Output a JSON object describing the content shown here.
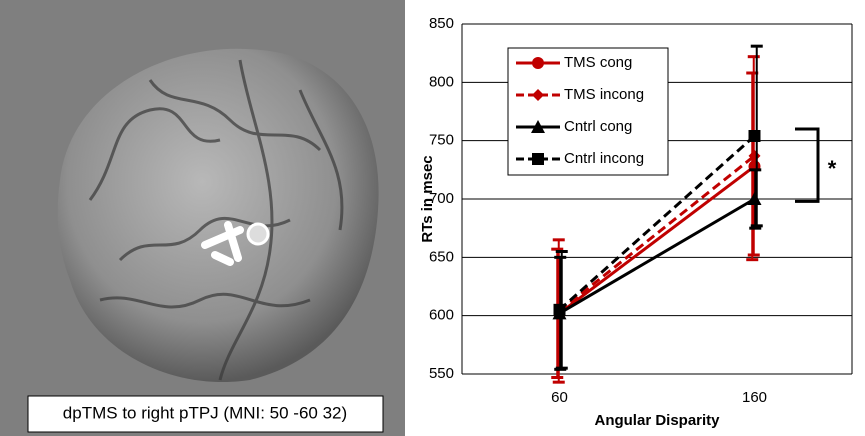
{
  "image_caption": "dpTMS to right pTPJ (MNI: 50 -60 32)",
  "chart_data": {
    "type": "line",
    "x_label": "Angular Disparity",
    "y_label": "RTs in msec",
    "categories": [
      "60",
      "160"
    ],
    "ylim": [
      550,
      850
    ],
    "yticks": [
      550,
      600,
      650,
      700,
      750,
      800,
      850
    ],
    "grid": true,
    "legend": "upper-left",
    "annotation": "*",
    "series": [
      {
        "name": "TMS cong",
        "color": "#c00000",
        "dash": "solid",
        "marker": "circle",
        "values": [
          602,
          728
        ],
        "errors": [
          55,
          80
        ]
      },
      {
        "name": "TMS incong",
        "color": "#c00000",
        "dash": "dashed",
        "marker": "diamond",
        "values": [
          604,
          737
        ],
        "errors": [
          61,
          85
        ]
      },
      {
        "name": "Cntrl cong",
        "color": "#000000",
        "dash": "solid",
        "marker": "triangle",
        "values": [
          602,
          700
        ],
        "errors": [
          48,
          25
        ]
      },
      {
        "name": "Cntrl incong",
        "color": "#000000",
        "dash": "dashed",
        "marker": "square",
        "values": [
          605,
          754
        ],
        "errors": [
          50,
          77
        ]
      }
    ]
  }
}
